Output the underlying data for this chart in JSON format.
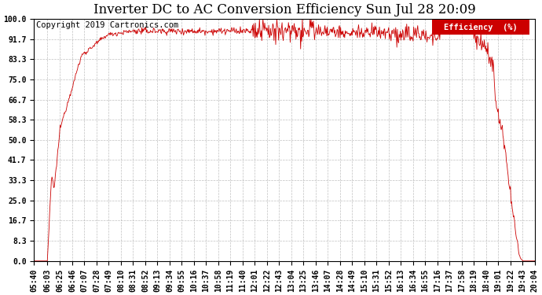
{
  "title": "Inverter DC to AC Conversion Efficiency Sun Jul 28 20:09",
  "copyright": "Copyright 2019 Cartronics.com",
  "legend_label": "Efficiency  (%)",
  "legend_bg": "#cc0000",
  "legend_text_color": "#ffffff",
  "line_color": "#cc0000",
  "background_color": "#ffffff",
  "grid_color": "#b0b0b0",
  "ylim": [
    0.0,
    100.0
  ],
  "yticks": [
    0.0,
    8.3,
    16.7,
    25.0,
    33.3,
    41.7,
    50.0,
    58.3,
    66.7,
    75.0,
    83.3,
    91.7,
    100.0
  ],
  "xtick_labels": [
    "05:40",
    "06:03",
    "06:25",
    "06:46",
    "07:07",
    "07:28",
    "07:49",
    "08:10",
    "08:31",
    "08:52",
    "09:13",
    "09:34",
    "09:55",
    "10:16",
    "10:37",
    "10:58",
    "11:19",
    "11:40",
    "12:01",
    "12:22",
    "12:43",
    "13:04",
    "13:25",
    "13:46",
    "14:07",
    "14:28",
    "14:49",
    "15:10",
    "15:31",
    "15:52",
    "16:13",
    "16:34",
    "16:55",
    "17:16",
    "17:37",
    "17:58",
    "18:19",
    "18:40",
    "19:01",
    "19:22",
    "19:43",
    "20:04"
  ],
  "title_fontsize": 12,
  "copyright_fontsize": 7.5,
  "tick_fontsize": 7
}
